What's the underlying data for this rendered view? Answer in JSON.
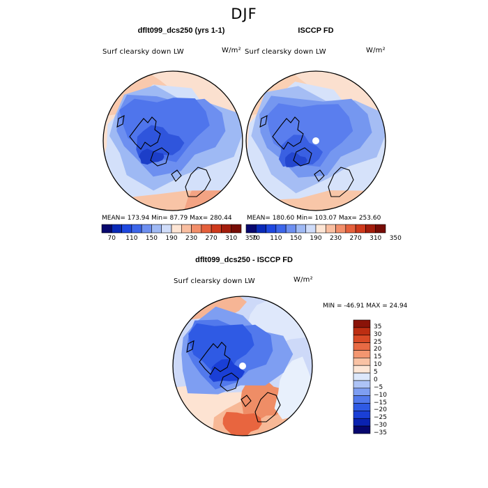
{
  "figure": {
    "season": "DJF"
  },
  "panels": [
    {
      "title": "dflt099_dcs250 (yrs 1-1)",
      "subtitle": "Surf clearsky down LW",
      "units": "W/m²",
      "stats": "MEAN= 173.94   Min=  87.79   Max= 280.44"
    },
    {
      "title": "ISCCP FD",
      "subtitle": "Surf clearsky down LW",
      "units": "W/m²",
      "stats": "MEAN= 180.60   Min= 103.07   Max= 253.60"
    },
    {
      "title": "dflt099_dcs250 - ISCCP FD",
      "subtitle": "Surf clearsky down LW",
      "units": "W/m²",
      "stats": "MIN = -46.91  MAX =  24.94"
    }
  ],
  "colorbar_top": {
    "colors": [
      "#08086e",
      "#0a2ab8",
      "#1f48e0",
      "#3d66ea",
      "#6d8ff0",
      "#9fb9f4",
      "#cfdcf9",
      "#fde5d4",
      "#f9bea0",
      "#f28e6a",
      "#e5603c",
      "#cf3a1c",
      "#a31d0c",
      "#760c06"
    ],
    "tick_labels": [
      "70",
      "110",
      "150",
      "190",
      "230",
      "270",
      "310",
      "350"
    ]
  },
  "colorbar_diff": {
    "colors": [
      "#06066e",
      "#0a22b0",
      "#1a3fd6",
      "#2f5ae4",
      "#5279ec",
      "#7e9ef2",
      "#adc3f6",
      "#dde8fb",
      "#fde6d6",
      "#f9c2a4",
      "#f39670",
      "#e86a44",
      "#d94a26",
      "#bd2e12",
      "#8a1308"
    ],
    "tick_labels": [
      "35",
      "30",
      "25",
      "20",
      "15",
      "10",
      "5",
      "0",
      "−5",
      "−10",
      "−15",
      "−20",
      "−25",
      "−30",
      "−35"
    ]
  }
}
